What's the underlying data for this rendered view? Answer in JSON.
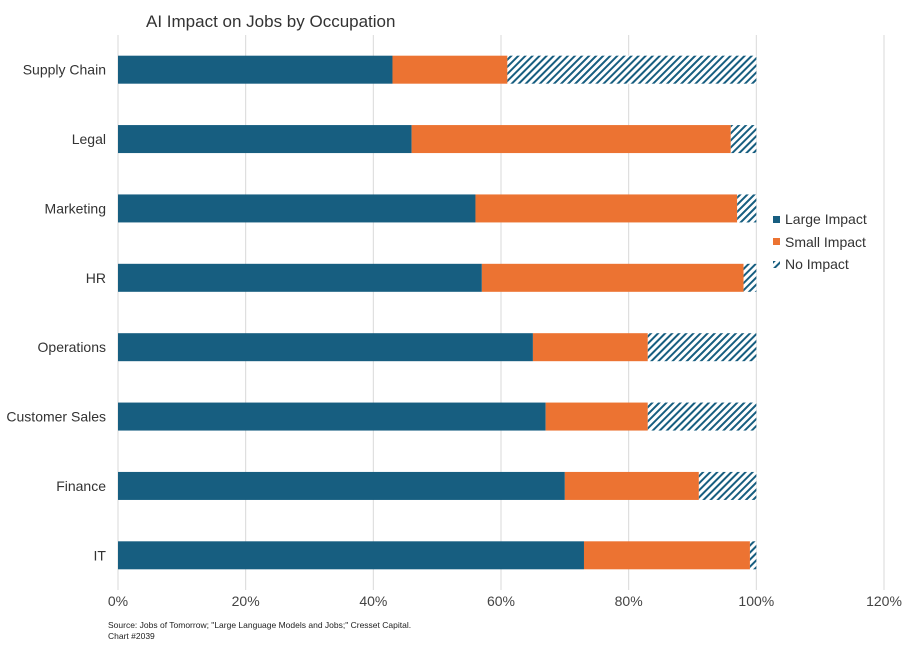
{
  "chart_data": {
    "type": "bar",
    "orientation": "horizontal",
    "stacked": true,
    "title": "AI Impact on Jobs by Occupation",
    "categories": [
      "Supply Chain",
      "Legal",
      "Marketing",
      "HR",
      "Operations",
      "Customer Sales",
      "Finance",
      "IT"
    ],
    "series": [
      {
        "name": "Large Impact",
        "color": "#175e80",
        "pattern": "solid",
        "values": [
          43,
          46,
          56,
          57,
          65,
          67,
          70,
          73
        ]
      },
      {
        "name": "Small Impact",
        "color": "#ec7332",
        "pattern": "solid",
        "values": [
          18,
          50,
          41,
          41,
          18,
          16,
          21,
          26
        ]
      },
      {
        "name": "No Impact",
        "color": "#175e80",
        "pattern": "hatch",
        "values": [
          39,
          4,
          3,
          2,
          17,
          17,
          9,
          1
        ]
      }
    ],
    "xlim": [
      0,
      120
    ],
    "xticks": [
      "0%",
      "20%",
      "40%",
      "60%",
      "80%",
      "100%",
      "120%"
    ],
    "xtick_values": [
      0,
      20,
      40,
      60,
      80,
      100,
      120
    ],
    "grid": true,
    "legend_position": "right"
  },
  "footer": {
    "source": "Source: Jobs of Tomorrow; \"Large Language Models and Jobs;\" Cresset Capital.",
    "chart_id": "Chart #2039"
  }
}
